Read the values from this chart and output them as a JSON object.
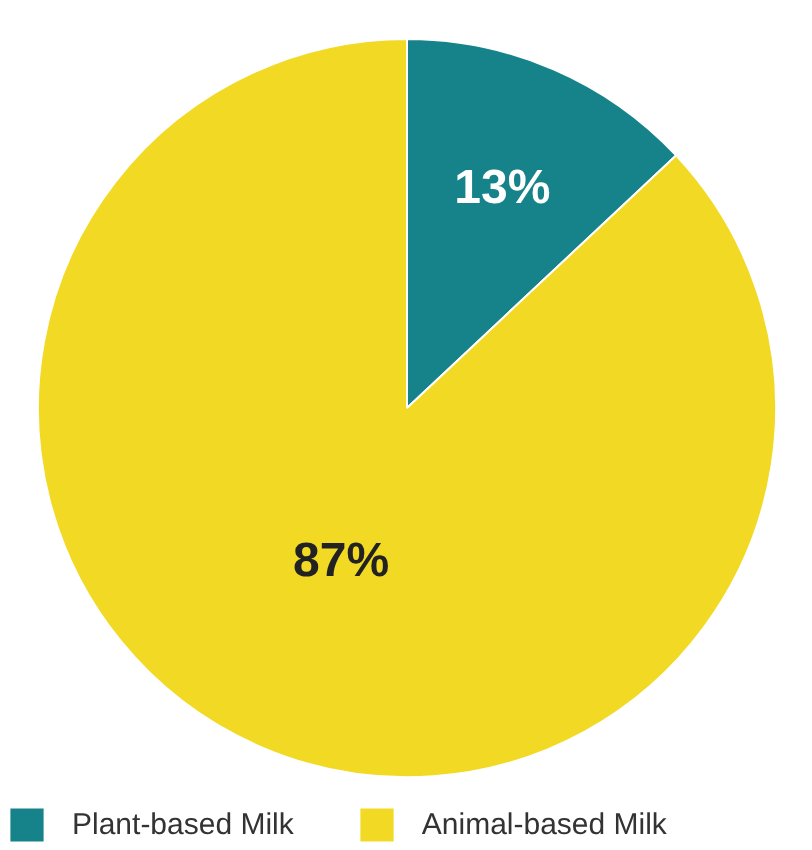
{
  "chart_data": {
    "type": "pie",
    "categories": [
      "Plant-based Milk",
      "Animal-based Milk"
    ],
    "values": [
      13,
      87
    ],
    "colors": [
      "#16828a",
      "#f2d923"
    ],
    "value_labels": [
      "13%",
      "87%"
    ],
    "legend": "bottom"
  }
}
